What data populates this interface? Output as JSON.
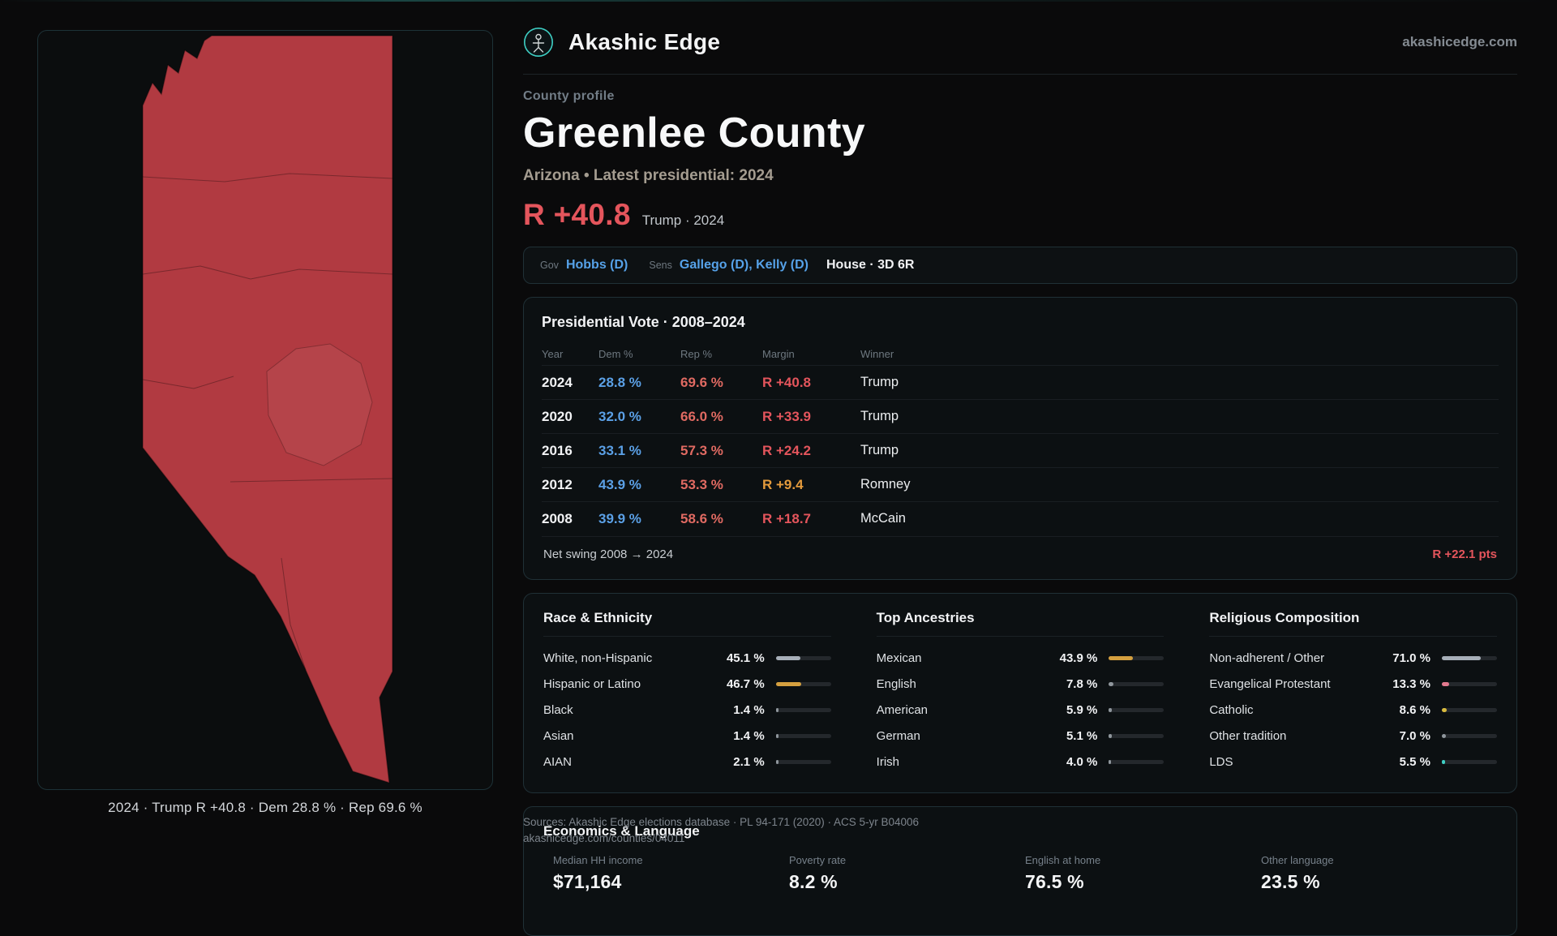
{
  "colors": {
    "dem_blue": "#5ba0e6",
    "rep_red": "#e06a62",
    "margin_red": "#e4555c",
    "margin_orange": "#e59b3c",
    "link_blue": "#56a2e9",
    "accent_teal": "#3ecfc4",
    "map_red": "#b13a41"
  },
  "site": {
    "brand": "Akashic Edge",
    "domain": "akashicedge.com"
  },
  "map": {
    "caption": "2024 · Trump R +40.8 · Dem 28.8 % · Rep 69.6 %"
  },
  "profile": {
    "kicker": "County profile",
    "title": "Greenlee County",
    "subtitle": "Arizona • Latest presidential: 2024",
    "margin_value": "R +40.8",
    "margin_note": "Trump · 2024"
  },
  "officials": {
    "gov_label": "Gov",
    "gov": "Hobbs (D)",
    "sens_label": "Sens",
    "sens": "Gallego (D), Kelly (D)",
    "house": "House · 3D 6R"
  },
  "presidential": {
    "title": "Presidential Vote · 2008–2024",
    "columns": {
      "year": "Year",
      "dem": "Dem %",
      "rep": "Rep %",
      "margin": "Margin",
      "winner": "Winner"
    },
    "rows": [
      {
        "year": "2024",
        "dem": "28.8 %",
        "rep": "69.6 %",
        "margin": "R +40.8",
        "winner": "Trump",
        "margin_color": "#e4555c"
      },
      {
        "year": "2020",
        "dem": "32.0 %",
        "rep": "66.0 %",
        "margin": "R +33.9",
        "winner": "Trump",
        "margin_color": "#e4555c"
      },
      {
        "year": "2016",
        "dem": "33.1 %",
        "rep": "57.3 %",
        "margin": "R +24.2",
        "winner": "Trump",
        "margin_color": "#e4555c"
      },
      {
        "year": "2012",
        "dem": "43.9 %",
        "rep": "53.3 %",
        "margin": "R +9.4",
        "winner": "Romney",
        "margin_color": "#e59b3c"
      },
      {
        "year": "2008",
        "dem": "39.9 %",
        "rep": "58.6 %",
        "margin": "R +18.7",
        "winner": "McCain",
        "margin_color": "#e4555c"
      }
    ],
    "net_swing_label": "Net swing 2008 → 2024",
    "net_swing_value": "R +22.1 pts"
  },
  "demographics": [
    {
      "title": "Race & Ethnicity",
      "rows": [
        {
          "label": "White, non-Hispanic",
          "value": "45.1 %",
          "pct": 45.1,
          "color": "#a7afb8"
        },
        {
          "label": "Hispanic or Latino",
          "value": "46.7 %",
          "pct": 46.7,
          "color": "#d5a03f"
        },
        {
          "label": "Black",
          "value": "1.4 %",
          "pct": 1.4,
          "color": "#8f969c"
        },
        {
          "label": "Asian",
          "value": "1.4 %",
          "pct": 1.4,
          "color": "#8f969c"
        },
        {
          "label": "AIAN",
          "value": "2.1 %",
          "pct": 2.1,
          "color": "#8f969c"
        }
      ]
    },
    {
      "title": "Top Ancestries",
      "rows": [
        {
          "label": "Mexican",
          "value": "43.9 %",
          "pct": 43.9,
          "color": "#d5a03f"
        },
        {
          "label": "English",
          "value": "7.8 %",
          "pct": 7.8,
          "color": "#8f969c"
        },
        {
          "label": "American",
          "value": "5.9 %",
          "pct": 5.9,
          "color": "#8f969c"
        },
        {
          "label": "German",
          "value": "5.1 %",
          "pct": 5.1,
          "color": "#8f969c"
        },
        {
          "label": "Irish",
          "value": "4.0 %",
          "pct": 4.0,
          "color": "#8f969c"
        }
      ]
    },
    {
      "title": "Religious Composition",
      "rows": [
        {
          "label": "Non-adherent / Other",
          "value": "71.0 %",
          "pct": 71.0,
          "color": "#a7afb8"
        },
        {
          "label": "Evangelical Protestant",
          "value": "13.3 %",
          "pct": 13.3,
          "color": "#e2798e"
        },
        {
          "label": "Catholic",
          "value": "8.6 %",
          "pct": 8.6,
          "color": "#d8bb3e"
        },
        {
          "label": "Other tradition",
          "value": "7.0 %",
          "pct": 7.0,
          "color": "#8f969c"
        },
        {
          "label": "LDS",
          "value": "5.5 %",
          "pct": 5.5,
          "color": "#3ecfc4"
        }
      ]
    }
  ],
  "economics": {
    "title": "Economics & Language",
    "stats": [
      {
        "label": "Median HH income",
        "value": "$71,164"
      },
      {
        "label": "Poverty rate",
        "value": "8.2 %"
      },
      {
        "label": "English at home",
        "value": "76.5 %"
      },
      {
        "label": "Other language",
        "value": "23.5 %"
      }
    ]
  },
  "footer": {
    "sources_line1": "Sources: Akashic Edge elections database · PL 94-171 (2020) · ACS 5-yr B04006",
    "sources_line2": "akashicedge.com/counties/04011"
  }
}
